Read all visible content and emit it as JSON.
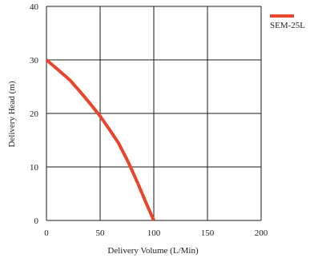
{
  "chart_data": {
    "type": "line",
    "xlabel": "Delivery Volume (L/Min)",
    "ylabel": "Delivery Head (m)",
    "xlim": [
      0,
      200
    ],
    "ylim": [
      0,
      40
    ],
    "xticks": [
      "0",
      "50",
      "100",
      "150",
      "200"
    ],
    "yticks": [
      "0",
      "10",
      "20",
      "30",
      "40"
    ],
    "grid": true,
    "legend_position": "top-right",
    "series": [
      {
        "name": "SEM-25L",
        "color": "#e8452c",
        "x": [
          0,
          10,
          22,
          32,
          40,
          50,
          58,
          67,
          76,
          85,
          93,
          100
        ],
        "y": [
          30,
          28.3,
          26.2,
          23.9,
          22.0,
          19.5,
          17.2,
          14.5,
          11.0,
          7.0,
          3.2,
          0
        ]
      }
    ]
  }
}
